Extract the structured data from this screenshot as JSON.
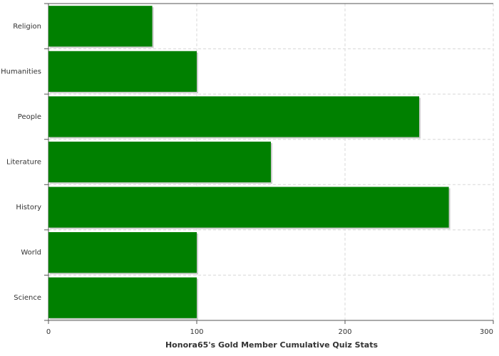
{
  "chart_data": {
    "type": "barh",
    "xlabel": "Honora65's Gold Member Cumulative Quiz Stats",
    "categories": [
      "Religion",
      "Humanities",
      "People",
      "Literature",
      "History",
      "World",
      "Science"
    ],
    "values": [
      70,
      100,
      250,
      150,
      270,
      100,
      100
    ],
    "color": "#008000",
    "xlim": [
      0,
      300
    ],
    "xticks": [
      0,
      100,
      200,
      300
    ],
    "grid": true
  }
}
